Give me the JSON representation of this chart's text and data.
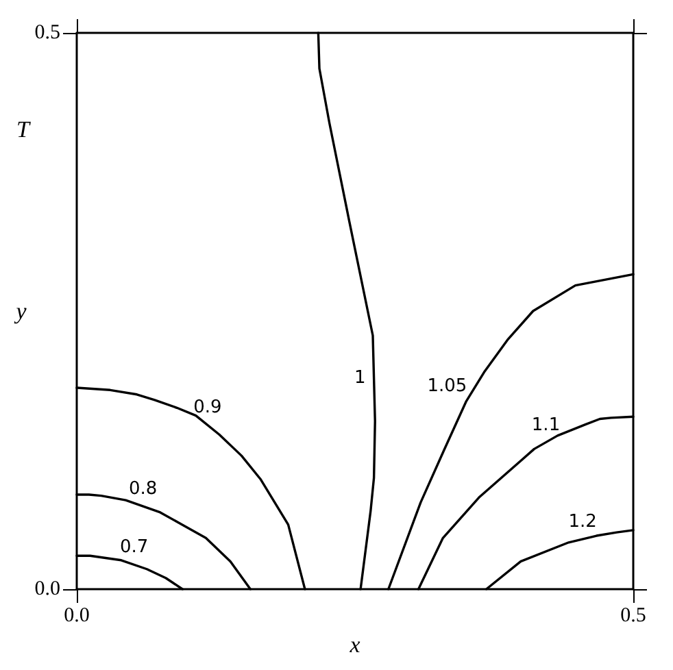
{
  "chart_data": {
    "type": "line",
    "xlabel": "x",
    "ylabel": "y",
    "annotations": [
      "T"
    ],
    "xlim": [
      0,
      0.5
    ],
    "ylim": [
      0,
      0.5
    ],
    "xticks": [
      {
        "value": 0,
        "label": "0.0"
      },
      {
        "value": 0.5,
        "label": "0.5"
      }
    ],
    "yticks": [
      {
        "value": 0,
        "label": "0.0"
      },
      {
        "value": 0.5,
        "label": "0.5"
      }
    ],
    "grid": false,
    "legend": false,
    "marker": "none",
    "line_style": "solid",
    "series": [
      {
        "name": "0.7",
        "color": "#000000",
        "x": [
          0,
          0.012,
          0.04,
          0.063,
          0.08,
          0.095
        ],
        "values": [
          0.03,
          0.03,
          0.026,
          0.018,
          0.01,
          0
        ]
      },
      {
        "name": "0.8",
        "color": "#000000",
        "x": [
          0,
          0.011,
          0.022,
          0.033,
          0.044,
          0.075,
          0.116,
          0.138,
          0.156
        ],
        "values": [
          0.085,
          0.085,
          0.084,
          0.082,
          0.08,
          0.069,
          0.046,
          0.025,
          0
        ]
      },
      {
        "name": "0.9",
        "color": "#000000",
        "x": [
          0,
          0.03,
          0.054,
          0.07,
          0.09,
          0.107,
          0.128,
          0.148,
          0.165,
          0.19,
          0.205
        ],
        "values": [
          0.181,
          0.179,
          0.175,
          0.17,
          0.163,
          0.156,
          0.139,
          0.12,
          0.099,
          0.058,
          0
        ]
      },
      {
        "name": "1",
        "color": "#000000",
        "x": [
          0.217,
          0.218,
          0.227,
          0.245,
          0.266,
          0.268,
          0.267,
          0.264,
          0.255
        ],
        "values": [
          0.5,
          0.468,
          0.419,
          0.33,
          0.228,
          0.151,
          0.1,
          0.07,
          0
        ]
      },
      {
        "name": "1.05",
        "color": "#000000",
        "x": [
          0.5,
          0.448,
          0.41,
          0.387,
          0.366,
          0.35,
          0.33,
          0.309,
          0.28
        ],
        "values": [
          0.283,
          0.273,
          0.25,
          0.224,
          0.195,
          0.169,
          0.125,
          0.078,
          0
        ]
      },
      {
        "name": "1.1",
        "color": "#000000",
        "x": [
          0.5,
          0.48,
          0.47,
          0.457,
          0.432,
          0.411,
          0.362,
          0.329,
          0.307
        ],
        "values": [
          0.155,
          0.154,
          0.153,
          0.148,
          0.138,
          0.126,
          0.083,
          0.046,
          0
        ]
      },
      {
        "name": "1.2",
        "color": "#000000",
        "x": [
          0.5,
          0.485,
          0.467,
          0.442,
          0.399,
          0.368
        ],
        "values": [
          0.053,
          0.051,
          0.048,
          0.042,
          0.025,
          0
        ]
      }
    ]
  }
}
